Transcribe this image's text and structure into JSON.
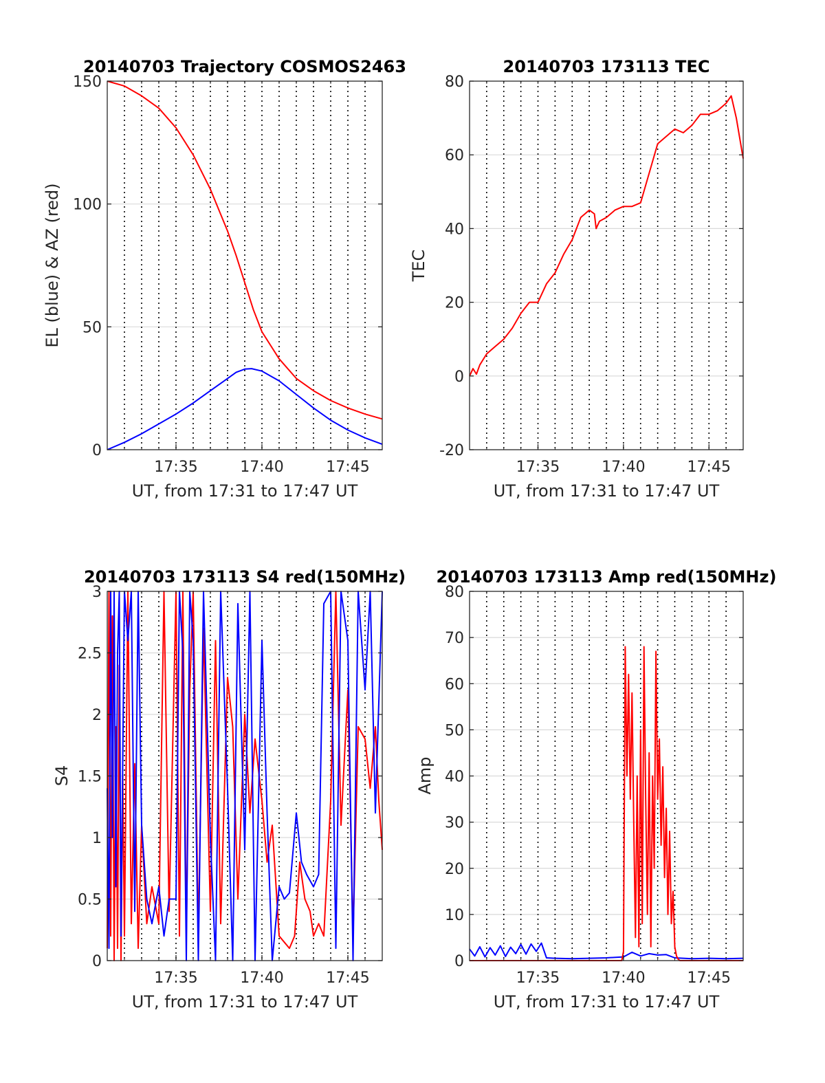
{
  "colors": {
    "el": "#0000ff",
    "az": "#ff0000",
    "tec": "#ff0000",
    "s4_red": "#ff0000",
    "s4_blue": "#0000ff",
    "amp_red": "#ff0000",
    "amp_blue": "#0000ff",
    "grid": "#d9d9d9",
    "vline": "#000000"
  },
  "chart_data": [
    {
      "id": "trajectory",
      "type": "line",
      "title": "20140703 Trajectory COSMOS2463",
      "xlabel": "UT, from 17:31 to 17:47 UT",
      "ylabel": "EL (blue) & AZ (red)",
      "xlim_min": [
        1051.0,
        1067.0
      ],
      "ylim": [
        0,
        150
      ],
      "yticks": [
        0,
        50,
        100,
        150
      ],
      "ytick_labels": [
        "0",
        "50",
        "100",
        "150"
      ],
      "xticks_min": [
        1055,
        1060,
        1065
      ],
      "xtick_labels": [
        "17:35",
        "17:40",
        "17:45"
      ],
      "vlines_min": [
        1052,
        1053,
        1054,
        1055,
        1056,
        1057,
        1058,
        1059,
        1060,
        1061,
        1062,
        1063,
        1064,
        1065,
        1066
      ],
      "series": [
        {
          "key": "az",
          "color": "#ff0000",
          "x": [
            1051.0,
            1052.0,
            1053.0,
            1054.0,
            1055.0,
            1056.0,
            1057.0,
            1058.0,
            1058.5,
            1059.0,
            1059.5,
            1060.0,
            1061.0,
            1062.0,
            1063.0,
            1064.0,
            1065.0,
            1066.0,
            1067.0
          ],
          "y": [
            150,
            148,
            144,
            139,
            131,
            120,
            106,
            89,
            79,
            68,
            57,
            48,
            37,
            29,
            24,
            20,
            17,
            14.5,
            12.5
          ]
        },
        {
          "key": "el",
          "color": "#0000ff",
          "x": [
            1051.0,
            1052.0,
            1053.0,
            1054.0,
            1055.0,
            1056.0,
            1057.0,
            1058.0,
            1058.5,
            1059.0,
            1059.4,
            1060.0,
            1061.0,
            1062.0,
            1063.0,
            1064.0,
            1065.0,
            1066.0,
            1067.0
          ],
          "y": [
            0,
            3,
            6.5,
            10.5,
            14.5,
            19,
            24,
            29,
            31.5,
            32.8,
            33,
            32,
            28,
            22.5,
            17,
            12,
            8,
            4.8,
            2.2
          ]
        }
      ]
    },
    {
      "id": "tec",
      "type": "line",
      "title": "20140703 173113 TEC",
      "xlabel": "UT, from 17:31 to 17:47 UT",
      "ylabel": "TEC",
      "xlim_min": [
        1051.0,
        1067.0
      ],
      "ylim": [
        -20,
        80
      ],
      "yticks": [
        -20,
        0,
        20,
        40,
        60,
        80
      ],
      "ytick_labels": [
        "-20",
        "0",
        "20",
        "40",
        "60",
        "80"
      ],
      "xticks_min": [
        1055,
        1060,
        1065
      ],
      "xtick_labels": [
        "17:35",
        "17:40",
        "17:45"
      ],
      "vlines_min": [
        1052,
        1053,
        1054,
        1055,
        1056,
        1057,
        1058,
        1059,
        1060,
        1061,
        1062,
        1063,
        1064,
        1065,
        1066
      ],
      "series": [
        {
          "key": "tec",
          "color": "#ff0000",
          "x": [
            1051.0,
            1051.2,
            1051.4,
            1051.6,
            1052.0,
            1052.5,
            1053.0,
            1053.5,
            1054.0,
            1054.5,
            1055.0,
            1055.5,
            1056.0,
            1056.5,
            1057.0,
            1057.5,
            1058.0,
            1058.3,
            1058.4,
            1058.6,
            1059.0,
            1059.5,
            1060.0,
            1060.5,
            1061.0,
            1061.5,
            1062.0,
            1062.5,
            1063.0,
            1063.5,
            1064.0,
            1064.5,
            1065.0,
            1065.5,
            1066.0,
            1066.3,
            1066.6,
            1067.0
          ],
          "y": [
            0,
            2,
            0.5,
            3,
            6,
            8,
            10,
            13,
            17,
            20,
            20,
            25,
            28,
            33,
            37,
            43,
            45,
            44,
            40,
            42,
            43,
            45,
            46,
            46,
            47,
            55,
            63,
            65,
            67,
            66,
            68,
            71,
            71,
            72,
            74,
            76,
            70,
            59
          ]
        }
      ]
    },
    {
      "id": "s4",
      "type": "line",
      "title": "20140703 173113 S4 red(150MHz)",
      "xlabel": "UT, from 17:31 to 17:47 UT",
      "ylabel": "S4",
      "xlim_min": [
        1051.0,
        1067.0
      ],
      "ylim": [
        0,
        3
      ],
      "yticks": [
        0,
        0.5,
        1,
        1.5,
        2,
        2.5,
        3
      ],
      "ytick_labels": [
        "0",
        "0.5",
        "1",
        "1.5",
        "2",
        "2.5",
        "3"
      ],
      "xticks_min": [
        1055,
        1060,
        1065
      ],
      "xtick_labels": [
        "17:35",
        "17:40",
        "17:45"
      ],
      "vlines_min": [
        1052,
        1053,
        1054,
        1055,
        1056,
        1057,
        1058,
        1059,
        1060,
        1061,
        1062,
        1063,
        1064,
        1065,
        1066
      ],
      "series": [
        {
          "key": "s4_red",
          "color": "#ff0000",
          "x": [
            1051.0,
            1051.1,
            1051.2,
            1051.3,
            1051.4,
            1051.5,
            1051.6,
            1051.7,
            1051.8,
            1051.9,
            1052.0,
            1052.2,
            1052.4,
            1052.6,
            1052.8,
            1053.0,
            1053.3,
            1053.6,
            1054.0,
            1054.3,
            1054.6,
            1055.0,
            1055.2,
            1055.4,
            1055.6,
            1055.8,
            1056.0,
            1056.3,
            1056.6,
            1057.0,
            1057.3,
            1057.6,
            1058.0,
            1058.3,
            1058.6,
            1059.0,
            1059.3,
            1059.6,
            1060.0,
            1060.3,
            1060.6,
            1061.0,
            1061.3,
            1061.6,
            1061.9,
            1062.2,
            1062.5,
            1062.8,
            1063.0,
            1063.3,
            1063.6,
            1064.0,
            1064.3,
            1064.6,
            1065.0,
            1065.3,
            1065.6,
            1066.0,
            1066.3,
            1066.6,
            1066.8,
            1067.0
          ],
          "y": [
            0.1,
            3,
            0.2,
            2.8,
            0,
            1.9,
            0.1,
            2.4,
            0,
            1.5,
            0.2,
            3,
            0.3,
            1.6,
            0.1,
            1.1,
            0.3,
            0.6,
            0.3,
            3,
            0.4,
            3,
            0.2,
            3,
            0.2,
            2.2,
            3,
            0.2,
            2.7,
            0.4,
            2.6,
            0.3,
            2.3,
            1.9,
            0.5,
            2.0,
            1.2,
            1.8,
            1.3,
            0.8,
            1.1,
            0.2,
            0.15,
            0.1,
            0.2,
            0.8,
            0.5,
            0.4,
            0.2,
            0.3,
            0.2,
            1.3,
            3,
            1.1,
            2.2,
            0.2,
            1.9,
            1.8,
            1.4,
            1.9,
            1.3,
            0.9
          ]
        },
        {
          "key": "s4_blue",
          "color": "#0000ff",
          "x": [
            1051.0,
            1051.1,
            1051.2,
            1051.3,
            1051.4,
            1051.5,
            1051.6,
            1051.7,
            1051.8,
            1052.0,
            1052.2,
            1052.4,
            1052.6,
            1052.8,
            1053.0,
            1053.3,
            1053.6,
            1054.0,
            1054.3,
            1054.6,
            1055.0,
            1055.2,
            1055.4,
            1055.6,
            1055.8,
            1056.0,
            1056.3,
            1056.6,
            1057.0,
            1057.3,
            1057.6,
            1058.0,
            1058.3,
            1058.6,
            1059.0,
            1059.3,
            1059.6,
            1060.0,
            1060.3,
            1060.6,
            1061.0,
            1061.3,
            1061.6,
            1062.0,
            1062.3,
            1062.6,
            1063.0,
            1063.3,
            1063.6,
            1064.0,
            1064.3,
            1064.6,
            1065.0,
            1065.3,
            1065.6,
            1066.0,
            1066.3,
            1066.6,
            1067.0
          ],
          "y": [
            1.4,
            0.1,
            3,
            1.0,
            3,
            0.6,
            2.5,
            3,
            0.2,
            3,
            2.6,
            3,
            0.4,
            3,
            1.1,
            0.5,
            0.3,
            0.6,
            0.2,
            0.5,
            0.5,
            3,
            2.5,
            0,
            3,
            2.6,
            0,
            3,
            1.0,
            0,
            3,
            1.4,
            0,
            2.9,
            0.9,
            3,
            0,
            2.6,
            1.2,
            0,
            0.6,
            0.5,
            0.55,
            1.2,
            0.8,
            0.7,
            0.6,
            0.7,
            2.9,
            3,
            0.1,
            3,
            2.6,
            0,
            3,
            2.2,
            3,
            1.2,
            3
          ]
        }
      ]
    },
    {
      "id": "amp",
      "type": "line",
      "title": "20140703 173113 Amp red(150MHz)",
      "xlabel": "UT, from 17:31 to 17:47 UT",
      "ylabel": "Amp",
      "xlim_min": [
        1051.0,
        1067.0
      ],
      "ylim": [
        0,
        80
      ],
      "yticks": [
        0,
        10,
        20,
        30,
        40,
        50,
        60,
        70,
        80
      ],
      "ytick_labels": [
        "0",
        "10",
        "20",
        "30",
        "40",
        "50",
        "60",
        "70",
        "80"
      ],
      "xticks_min": [
        1055,
        1060,
        1065
      ],
      "xtick_labels": [
        "17:35",
        "17:40",
        "17:45"
      ],
      "vlines_min": [
        1052,
        1053,
        1054,
        1055,
        1056,
        1057,
        1058,
        1059,
        1060,
        1061,
        1062,
        1063,
        1064,
        1065,
        1066
      ],
      "series": [
        {
          "key": "amp_blue",
          "color": "#0000ff",
          "x": [
            1051.0,
            1051.3,
            1051.6,
            1051.9,
            1052.2,
            1052.5,
            1052.8,
            1053.1,
            1053.4,
            1053.7,
            1054.0,
            1054.3,
            1054.6,
            1054.9,
            1055.2,
            1055.5,
            1056.0,
            1057.0,
            1058.0,
            1059.0,
            1060.0,
            1060.5,
            1061.0,
            1061.5,
            1062.0,
            1062.5,
            1063.0,
            1064.0,
            1065.0,
            1066.0,
            1067.0
          ],
          "y": [
            2.5,
            1.0,
            3.0,
            0.8,
            2.8,
            1.2,
            3.2,
            0.9,
            2.9,
            1.5,
            3.5,
            1.4,
            3.6,
            2.0,
            3.8,
            0.6,
            0.5,
            0.4,
            0.5,
            0.6,
            0.8,
            1.8,
            1.0,
            1.5,
            1.2,
            1.3,
            0.6,
            0.4,
            0.5,
            0.4,
            0.5
          ]
        },
        {
          "key": "amp_red",
          "color": "#ff0000",
          "x": [
            1051.0,
            1059.9,
            1060.0,
            1060.1,
            1060.2,
            1060.3,
            1060.4,
            1060.5,
            1060.6,
            1060.7,
            1060.8,
            1060.9,
            1061.0,
            1061.1,
            1061.2,
            1061.3,
            1061.4,
            1061.5,
            1061.6,
            1061.7,
            1061.8,
            1061.9,
            1062.0,
            1062.1,
            1062.2,
            1062.3,
            1062.4,
            1062.5,
            1062.6,
            1062.7,
            1062.8,
            1062.9,
            1063.0,
            1063.1,
            1063.2,
            1063.3,
            1067.0
          ],
          "y": [
            0,
            0,
            2,
            68,
            40,
            62,
            35,
            58,
            30,
            5,
            40,
            3,
            50,
            8,
            68,
            35,
            10,
            45,
            3,
            40,
            20,
            67,
            35,
            48,
            25,
            42,
            18,
            33,
            10,
            28,
            8,
            15,
            3,
            1,
            0.3,
            0,
            0
          ]
        }
      ]
    }
  ]
}
